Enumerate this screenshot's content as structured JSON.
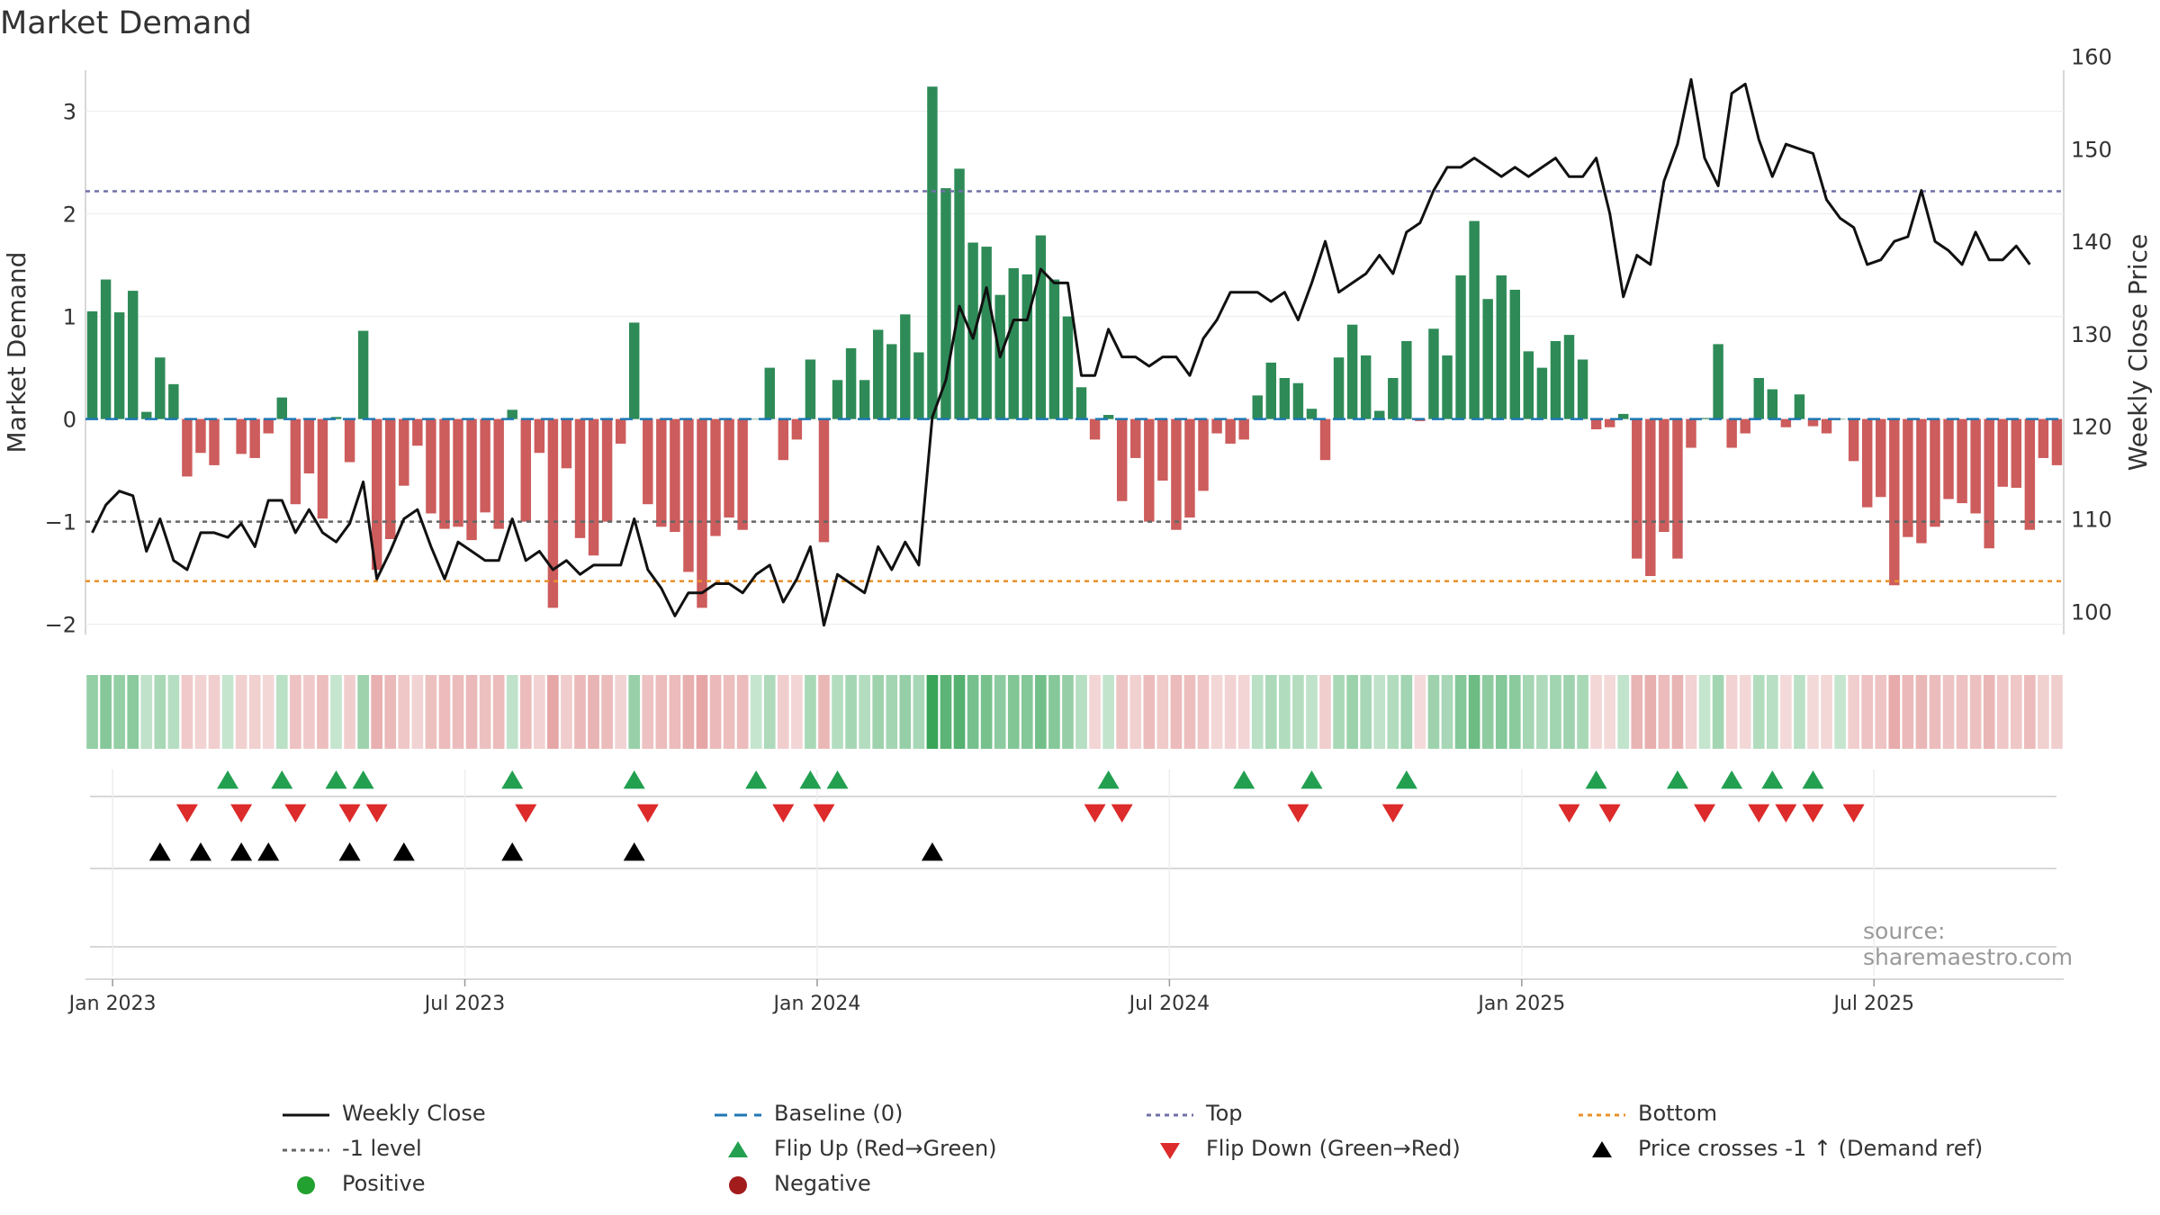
{
  "title": "Market Demand",
  "source_text": "source: sharemaestro.com",
  "colors": {
    "positive_bar": "#2e8b57",
    "negative_bar": "#cd5c5c",
    "price_line": "#111111",
    "baseline": "#1f77b4",
    "top_line": "#7070a8",
    "minus1_line": "#666666",
    "bottom_line": "#e8922a",
    "flip_up": "#22a050",
    "flip_down": "#dd2a2a",
    "cross": "#000000",
    "positive_dot": "#22a030",
    "negative_dot": "#a31c1c"
  },
  "chart_data": {
    "type": "bar",
    "title": "Market Demand",
    "ylabel": "Market Demand",
    "y2label": "Weekly Close Price",
    "ylim": [
      -2.1,
      3.4
    ],
    "y2lim": [
      97.5,
      158.5
    ],
    "yticks": [
      "3",
      "2",
      "1",
      "0",
      "−1",
      "−2"
    ],
    "ytick_values": [
      3,
      2,
      1,
      0,
      -1,
      -2
    ],
    "y2ticks": [
      "160",
      "150",
      "140",
      "130",
      "120",
      "110",
      "100"
    ],
    "y2tick_values": [
      160,
      150,
      140,
      130,
      120,
      110,
      100
    ],
    "xticks": [
      "Jan 2023",
      "Jul 2023",
      "Jan 2024",
      "Jul 2024",
      "Jan 2025",
      "Jul 2025"
    ],
    "xtick_week_index": [
      2,
      28,
      54,
      80,
      106,
      132
    ],
    "reference_lines": {
      "baseline": 0,
      "top": 2.22,
      "minus1": -1,
      "bottom": -1.58
    },
    "demand": [
      1.05,
      1.36,
      1.04,
      1.25,
      0.07,
      0.6,
      0.34,
      -0.56,
      -0.33,
      -0.45,
      0,
      -0.34,
      -0.38,
      -0.14,
      0.21,
      -0.83,
      -0.53,
      -0.97,
      0.02,
      -0.42,
      0.86,
      -1.47,
      -1.17,
      -0.65,
      -0.26,
      -0.92,
      -1.07,
      -1.05,
      -1.18,
      -0.91,
      -1.07,
      0.09,
      -1.0,
      -0.33,
      -1.84,
      -0.48,
      -1.16,
      -1.33,
      -1.0,
      -0.24,
      0.94,
      -0.83,
      -1.05,
      -1.1,
      -1.49,
      -1.84,
      -1.14,
      -0.96,
      -1.08,
      0,
      0.5,
      -0.4,
      -0.2,
      0.58,
      -1.2,
      0.38,
      0.69,
      0.38,
      0.87,
      0.73,
      1.02,
      0.65,
      3.24,
      2.25,
      2.44,
      1.72,
      1.68,
      1.21,
      1.47,
      1.41,
      1.79,
      1.36,
      1.0,
      0.31,
      -0.2,
      0.04,
      -0.8,
      -0.38,
      -1.0,
      -0.6,
      -1.08,
      -0.96,
      -0.7,
      -0.14,
      -0.24,
      -0.2,
      0.23,
      0.55,
      0.4,
      0.35,
      0.1,
      -0.4,
      0.6,
      0.92,
      0.62,
      0.08,
      0.4,
      0.76,
      -0.02,
      0.88,
      0.62,
      1.4,
      1.93,
      1.17,
      1.4,
      1.26,
      0.66,
      0.5,
      0.76,
      0.82,
      0.58,
      -0.1,
      -0.08,
      0.05,
      -1.36,
      -1.53,
      -1.1,
      -1.36,
      -0.28,
      0.01,
      0.73,
      -0.28,
      -0.14,
      0.4,
      0.29,
      -0.08,
      0.24,
      -0.07,
      -0.14,
      0,
      -0.41,
      -0.86,
      -0.76,
      -1.62,
      -1.15,
      -1.21,
      -1.05,
      -0.78,
      -0.82,
      -0.92,
      -1.26,
      -0.66,
      -0.67,
      -1.08,
      -0.38,
      -0.45
    ],
    "price": [
      108.5,
      111.5,
      113.0,
      112.5,
      106.5,
      110.0,
      105.5,
      104.5,
      108.5,
      108.5,
      108.0,
      109.5,
      107.0,
      112.0,
      112.0,
      108.5,
      111.0,
      108.5,
      107.5,
      109.5,
      114.0,
      103.5,
      106.5,
      110.0,
      111.0,
      107.0,
      103.5,
      107.5,
      106.5,
      105.5,
      105.5,
      110.0,
      105.5,
      106.5,
      104.5,
      105.5,
      104.0,
      105.0,
      105.0,
      105.0,
      110.0,
      104.5,
      102.5,
      99.5,
      102.0,
      102.0,
      103.0,
      103.0,
      102.0,
      104.0,
      105.0,
      101.0,
      103.5,
      107.0,
      98.5,
      104.0,
      103.0,
      102.0,
      107.0,
      104.5,
      107.5,
      105.0,
      121.0,
      125.0,
      133.0,
      129.5,
      135.0,
      127.5,
      131.5,
      131.5,
      137.0,
      135.5,
      135.5,
      125.5,
      125.5,
      130.5,
      127.5,
      127.5,
      126.5,
      127.5,
      127.5,
      125.5,
      129.5,
      131.5,
      134.5,
      134.5,
      134.5,
      133.5,
      134.5,
      131.5,
      135.5,
      140.0,
      134.5,
      135.5,
      136.5,
      138.5,
      136.5,
      141.0,
      142.0,
      145.5,
      148.0,
      148.0,
      149.0,
      148.0,
      147.0,
      148.0,
      147.0,
      148.0,
      149.0,
      147.0,
      147.0,
      149.0,
      143.0,
      134.0,
      138.5,
      137.5,
      146.5,
      150.5,
      157.5,
      149.0,
      146.0,
      156.0,
      157.0,
      151.0,
      147.0,
      150.5,
      150.0,
      149.5,
      144.5,
      142.5,
      141.5,
      137.5,
      138.0,
      140.0,
      140.5,
      145.5,
      140.0,
      139.0,
      137.5,
      141.0,
      138.0,
      138.0,
      139.5,
      137.5
    ],
    "flip_up_weeks": [
      10,
      14,
      18,
      20,
      31,
      40,
      49,
      53,
      55,
      75,
      85,
      90,
      97,
      111,
      117,
      121,
      124,
      127
    ],
    "flip_down_weeks": [
      7,
      11,
      15,
      19,
      21,
      32,
      41,
      51,
      54,
      74,
      76,
      89,
      96,
      109,
      112,
      119,
      123,
      125,
      127,
      130
    ],
    "price_cross_weeks": [
      5,
      8,
      11,
      13,
      19,
      23,
      31,
      40,
      62
    ],
    "legend": [
      {
        "label": "Weekly Close",
        "marker": "line"
      },
      {
        "label": "Baseline (0)",
        "marker": "dash"
      },
      {
        "label": "Top",
        "marker": "dot-purple"
      },
      {
        "label": "Bottom",
        "marker": "dot-orange"
      },
      {
        "label": "-1 level",
        "marker": "dot-gray"
      },
      {
        "label": "Flip Up (Red→Green)",
        "marker": "tri-up-green"
      },
      {
        "label": "Flip Down (Green→Red)",
        "marker": "tri-down-red"
      },
      {
        "label": "Price crosses -1 ↑ (Demand ref)",
        "marker": "tri-up-black"
      },
      {
        "label": "Positive",
        "marker": "dot-green"
      },
      {
        "label": "Negative",
        "marker": "dot-red"
      }
    ]
  }
}
